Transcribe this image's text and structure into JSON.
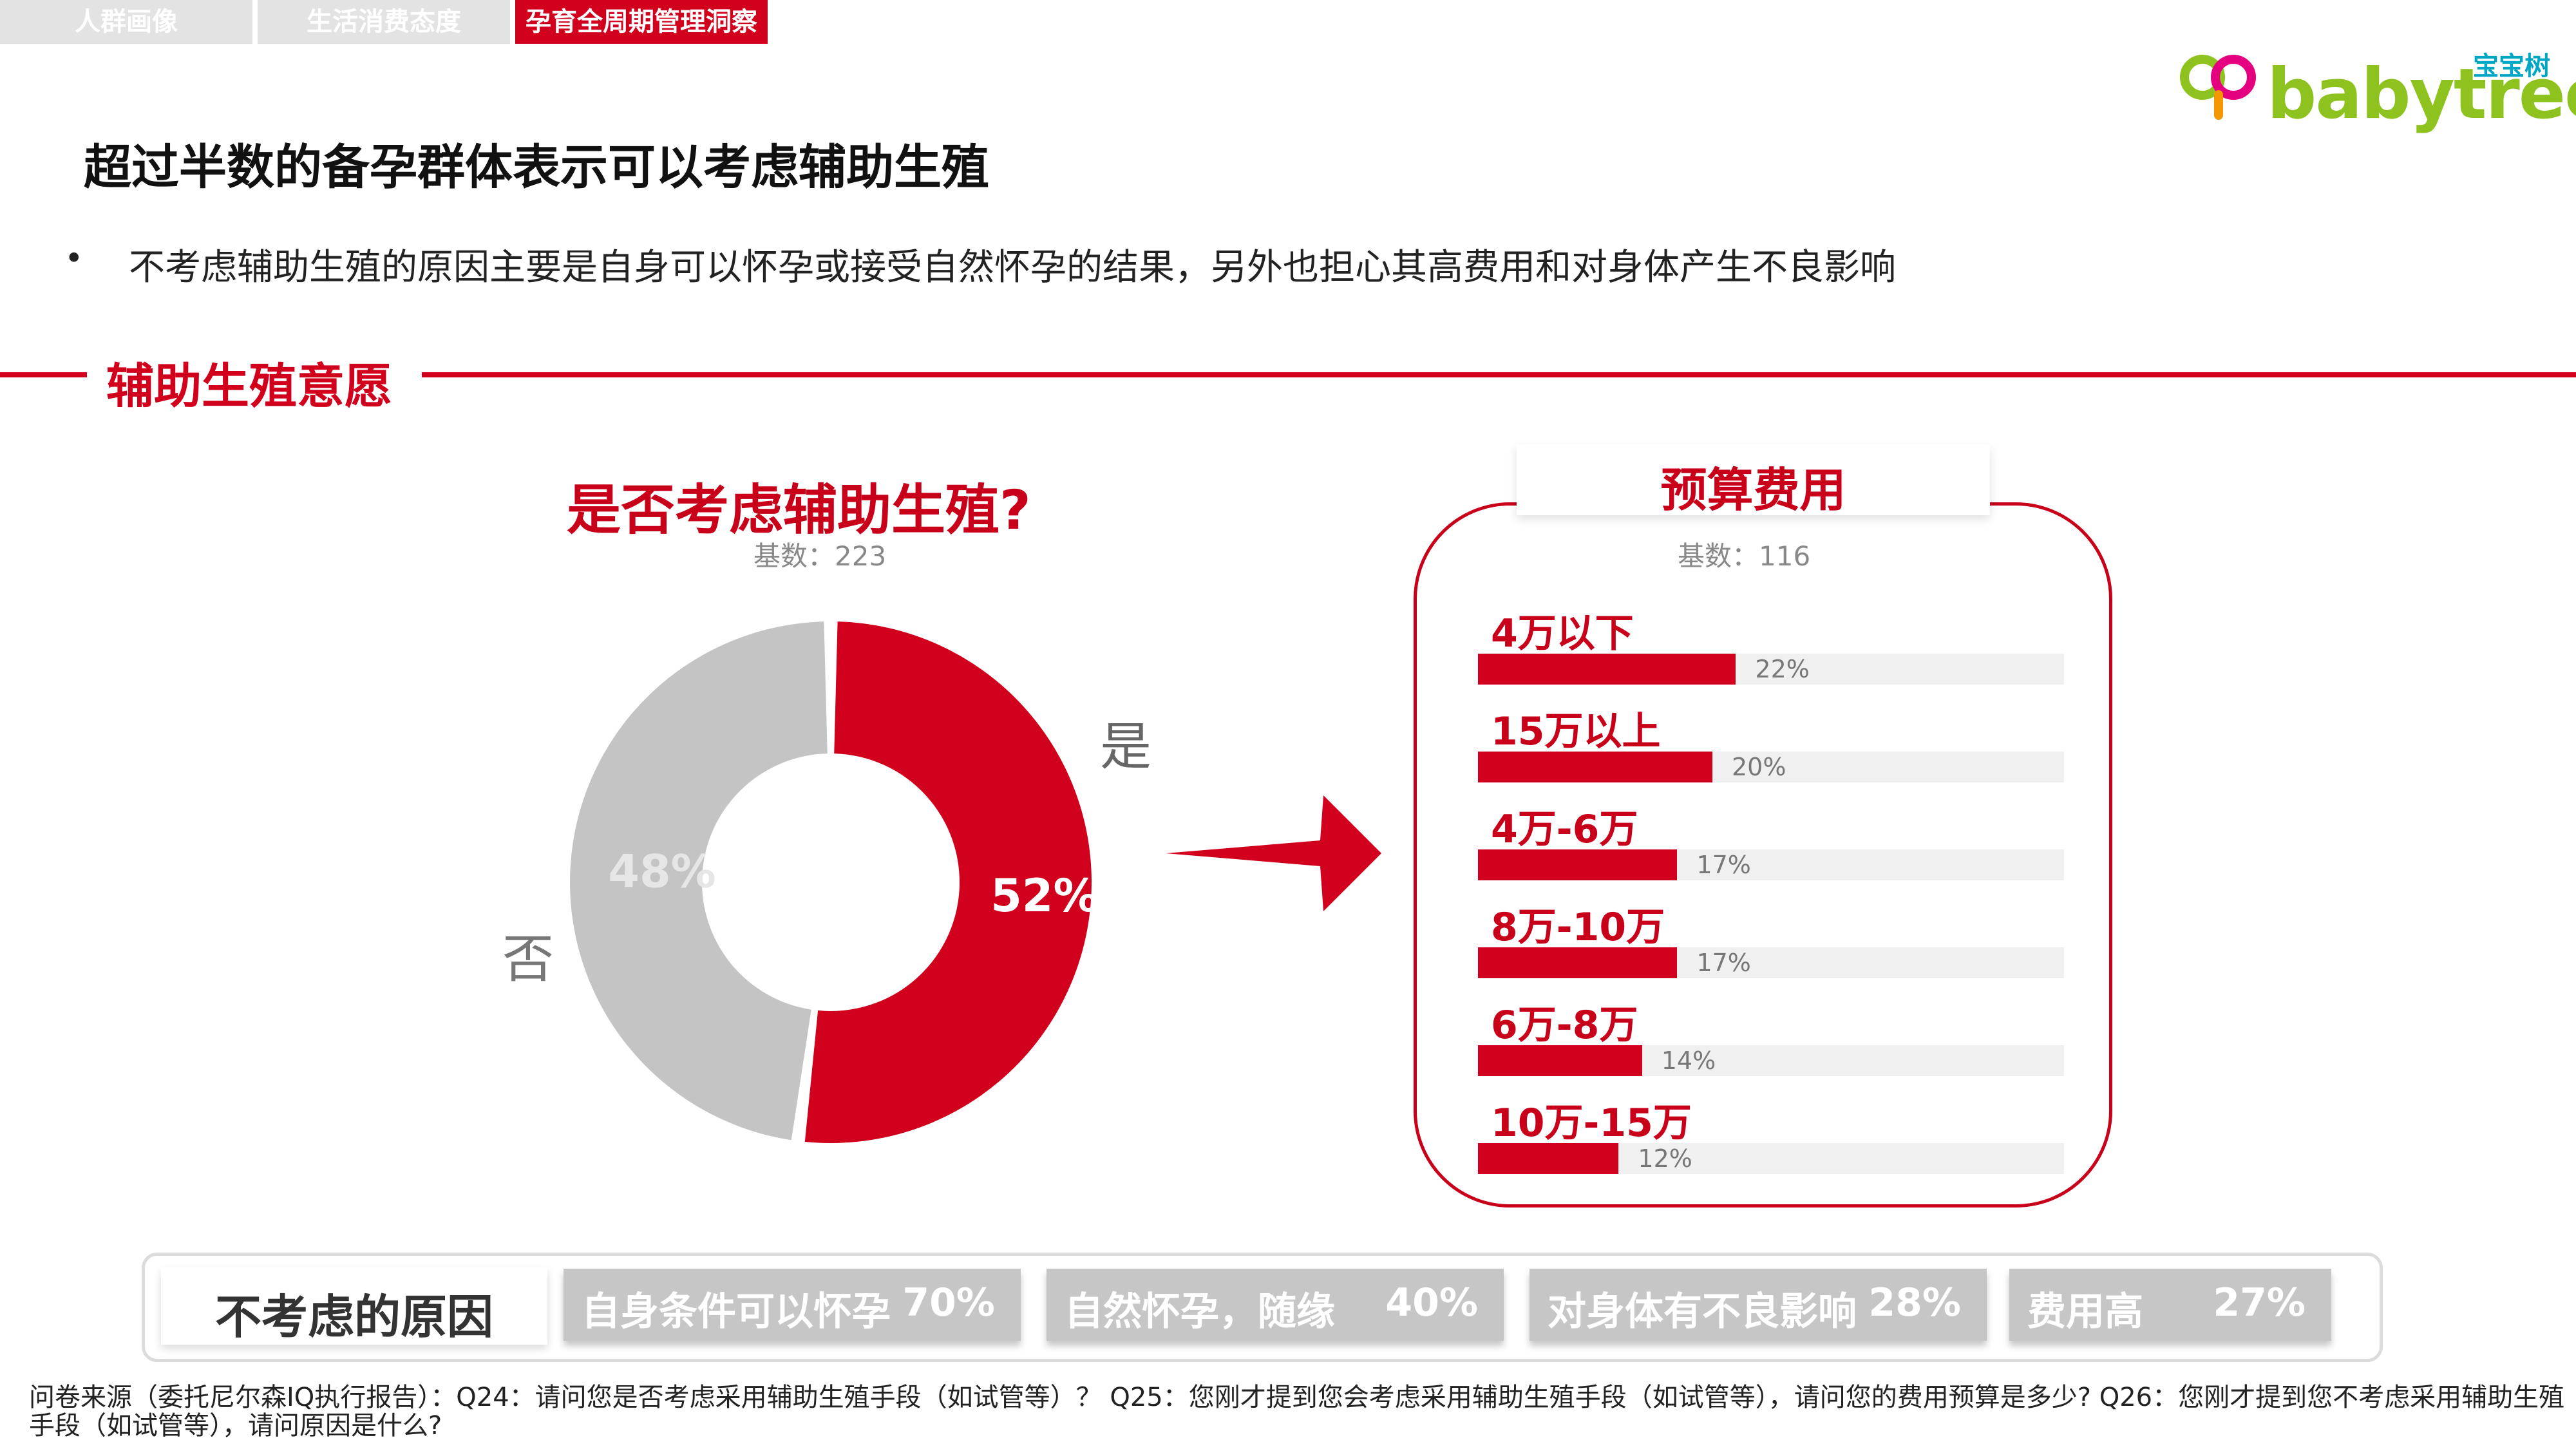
{
  "tabs": [
    "人群画像",
    "生活消费态度",
    "孕育全周期管理洞察"
  ],
  "logo": {
    "cn": "宝宝树",
    "en": "babytree"
  },
  "page_title": "超过半数的备孕群体表示可以考虑辅助生殖",
  "bullet": "不考虑辅助生殖的原因主要是自身可以怀孕或接受自然怀孕的结果，另外也担心其高费用和对身体产生不良影响",
  "section_title": "辅助生殖意愿",
  "colors": {
    "accent_red": "#d1001c",
    "grey": "#c4c4c4",
    "light_track": "#f0f0f0"
  },
  "chart_data": [
    {
      "type": "pie",
      "title": "是否考虑辅助生殖?",
      "base": "基数：223",
      "categories": [
        "是",
        "否"
      ],
      "values": [
        52,
        48
      ],
      "value_labels": [
        "52%",
        "48%"
      ],
      "colors": [
        "#d1001c",
        "#c4c4c4"
      ]
    },
    {
      "type": "bar",
      "title": "预算费用",
      "base": "基数：116",
      "categories": [
        "4万以下",
        "15万以上",
        "4万-6万",
        "8万-10万",
        "6万-8万",
        "10万-15万"
      ],
      "values": [
        22,
        20,
        17,
        17,
        14,
        12
      ],
      "value_labels": [
        "22%",
        "20%",
        "17%",
        "17%",
        "14%",
        "12%"
      ],
      "xlim": [
        0,
        50
      ]
    }
  ],
  "reasons": {
    "label": "不考虑的原因",
    "items": [
      {
        "text": "自身条件可以怀孕",
        "pct": "70%"
      },
      {
        "text": "自然怀孕，随缘",
        "pct": "40%"
      },
      {
        "text": "对身体有不良影响",
        "pct": "28%"
      },
      {
        "text": "费用高",
        "pct": "27%"
      }
    ]
  },
  "footnote": "问卷来源（委托尼尔森IQ执行报告）：Q24：请问您是否考虑采用辅助生殖手段（如试管等）？ Q25：您刚才提到您会考虑采用辅助生殖手段（如试管等），请问您的费用预算是多少? Q26：您刚才提到您不考虑采用辅助生殖手段（如试管等），请问原因是什么?"
}
